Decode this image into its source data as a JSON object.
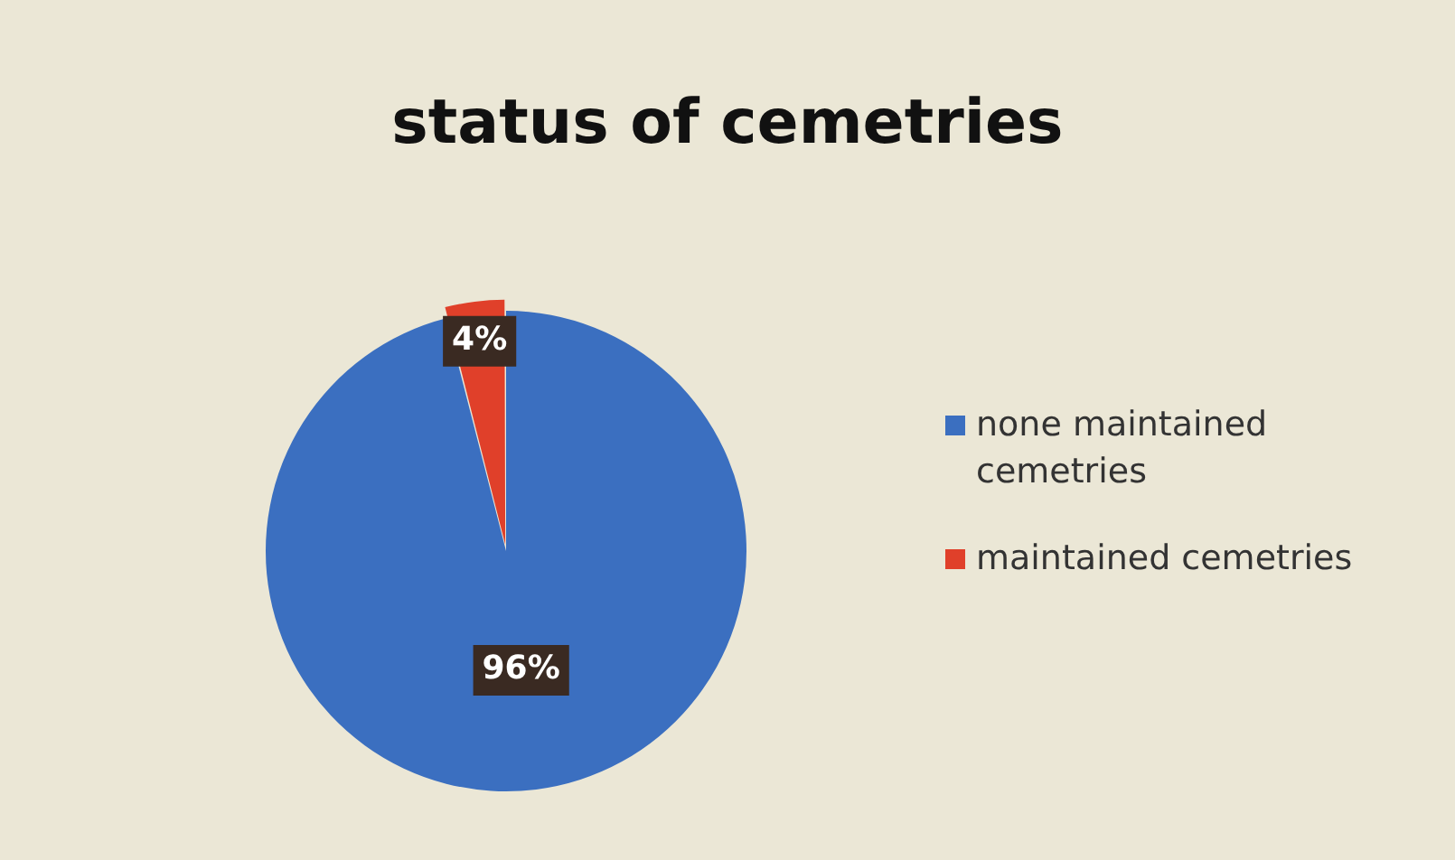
{
  "chart_data": {
    "type": "pie",
    "title": "status of cemetries",
    "categories": [
      "none maintained cemetries",
      "maintained cemetries"
    ],
    "values": [
      96,
      4
    ],
    "colors": [
      "#3b6fc0",
      "#e0402a"
    ],
    "value_labels": [
      "96%",
      "4%"
    ],
    "legend": "right"
  }
}
